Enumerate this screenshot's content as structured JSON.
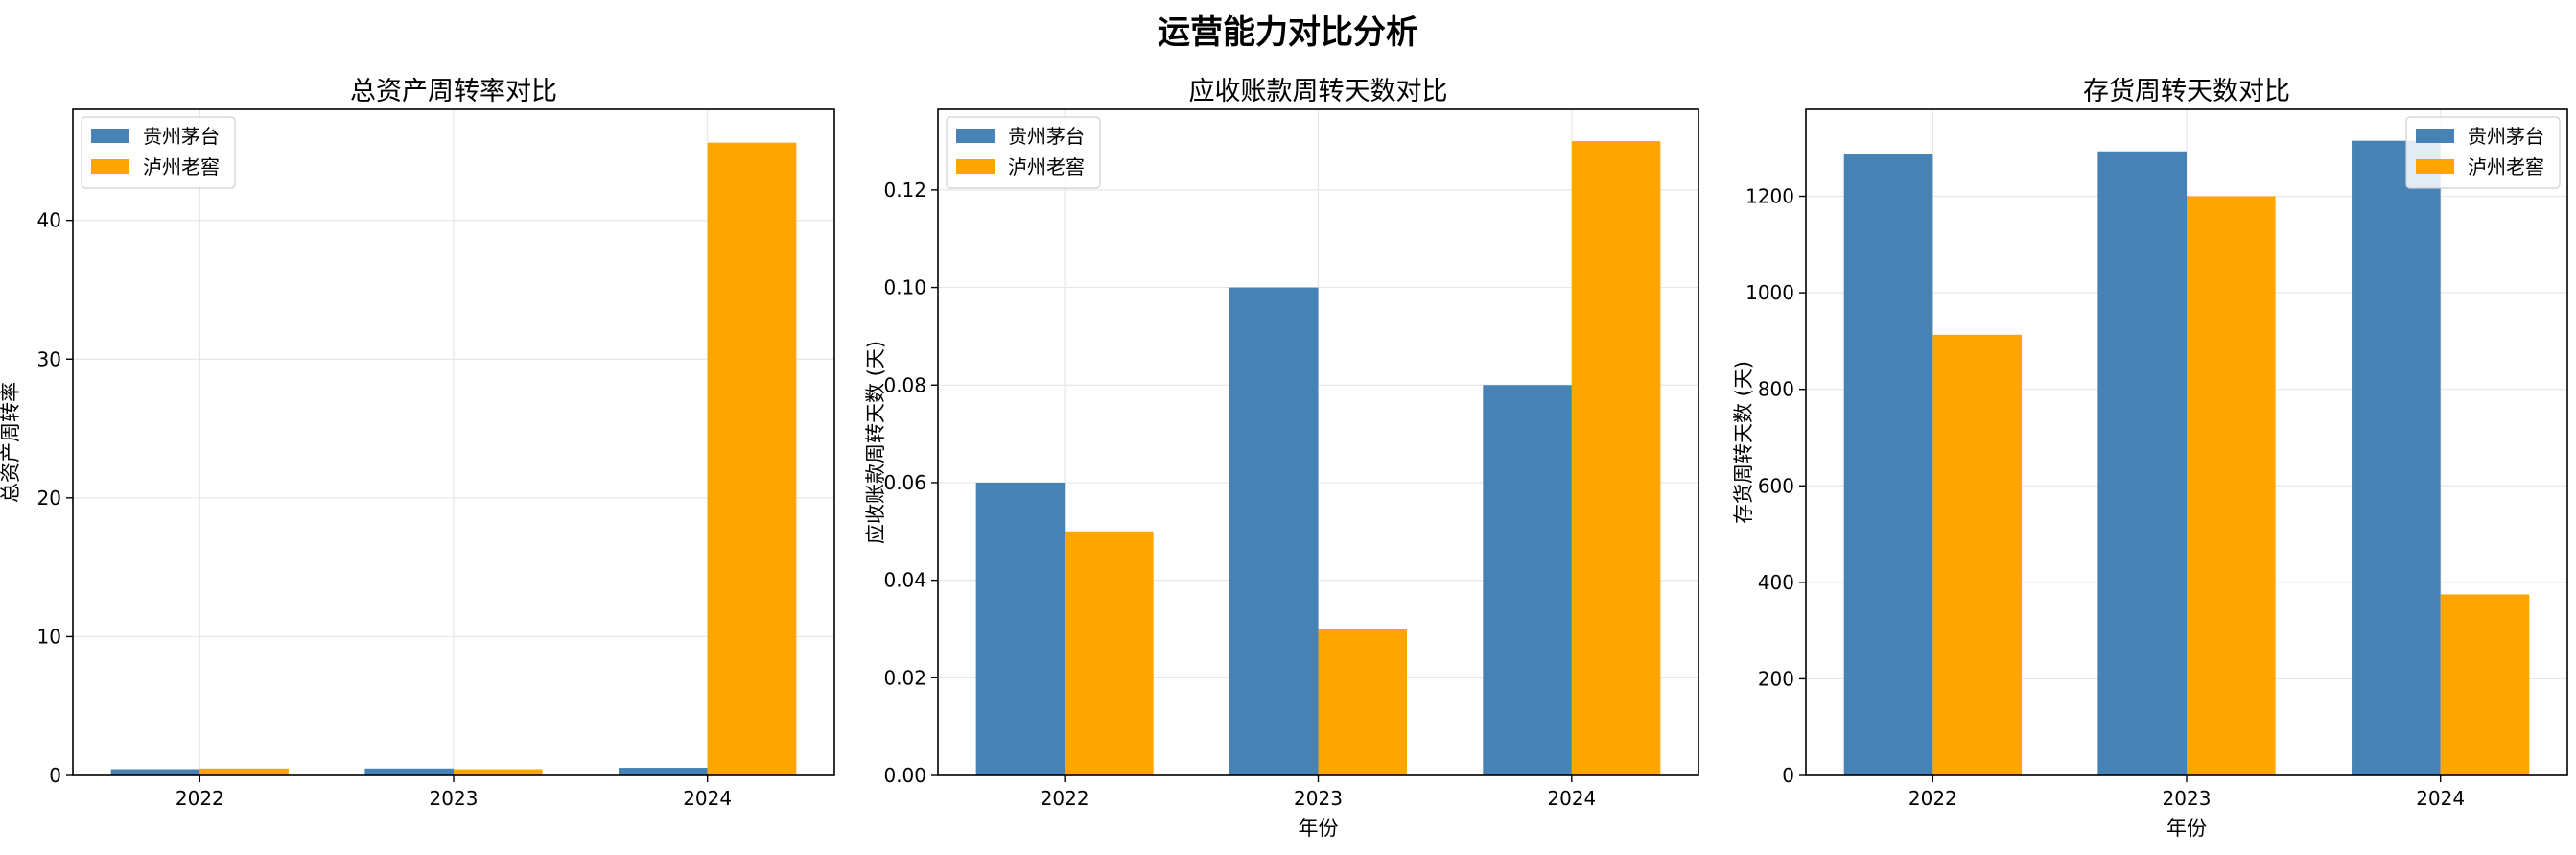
{
  "figure": {
    "title": "运营能力对比分析"
  },
  "colors": {
    "moutai": "#4682b4",
    "luzhou": "#ffa500",
    "grid": "#e6e6e6"
  },
  "chart_data": [
    {
      "type": "bar",
      "title": "总资产周转率对比",
      "xlabel": "",
      "ylabel": "总资产周转率",
      "categories": [
        "2022",
        "2023",
        "2024"
      ],
      "ylim": [
        0,
        48
      ],
      "yticks": [
        0,
        10,
        20,
        30,
        40
      ],
      "tick_format": 0,
      "legend_position": "top-left",
      "grid": true,
      "series": [
        {
          "name": "贵州茅台",
          "color": "#4682b4",
          "values": [
            0.45,
            0.5,
            0.55
          ]
        },
        {
          "name": "泸州老窖",
          "color": "#ffa500",
          "values": [
            0.5,
            0.45,
            45.6
          ]
        }
      ]
    },
    {
      "type": "bar",
      "title": "应收账款周转天数对比",
      "xlabel": "年份",
      "ylabel": "应收账款周转天数 (天)",
      "categories": [
        "2022",
        "2023",
        "2024"
      ],
      "ylim": [
        0,
        0.1365
      ],
      "yticks": [
        0,
        0.02,
        0.04,
        0.06,
        0.08,
        0.1,
        0.12
      ],
      "tick_format": 2,
      "legend_position": "top-left",
      "grid": true,
      "series": [
        {
          "name": "贵州茅台",
          "color": "#4682b4",
          "values": [
            0.06,
            0.1,
            0.08
          ]
        },
        {
          "name": "泸州老窖",
          "color": "#ffa500",
          "values": [
            0.05,
            0.03,
            0.13
          ]
        }
      ]
    },
    {
      "type": "bar",
      "title": "存货周转天数对比",
      "xlabel": "年份",
      "ylabel": "存货周转天数 (天)",
      "categories": [
        "2022",
        "2023",
        "2024"
      ],
      "ylim": [
        0,
        1380
      ],
      "yticks": [
        0,
        200,
        400,
        600,
        800,
        1000,
        1200
      ],
      "tick_format": 0,
      "legend_position": "top-right",
      "grid": true,
      "series": [
        {
          "name": "贵州茅台",
          "color": "#4682b4",
          "values": [
            1287,
            1293,
            1315
          ]
        },
        {
          "name": "泸州老窖",
          "color": "#ffa500",
          "values": [
            913,
            1200,
            375
          ]
        }
      ]
    }
  ]
}
